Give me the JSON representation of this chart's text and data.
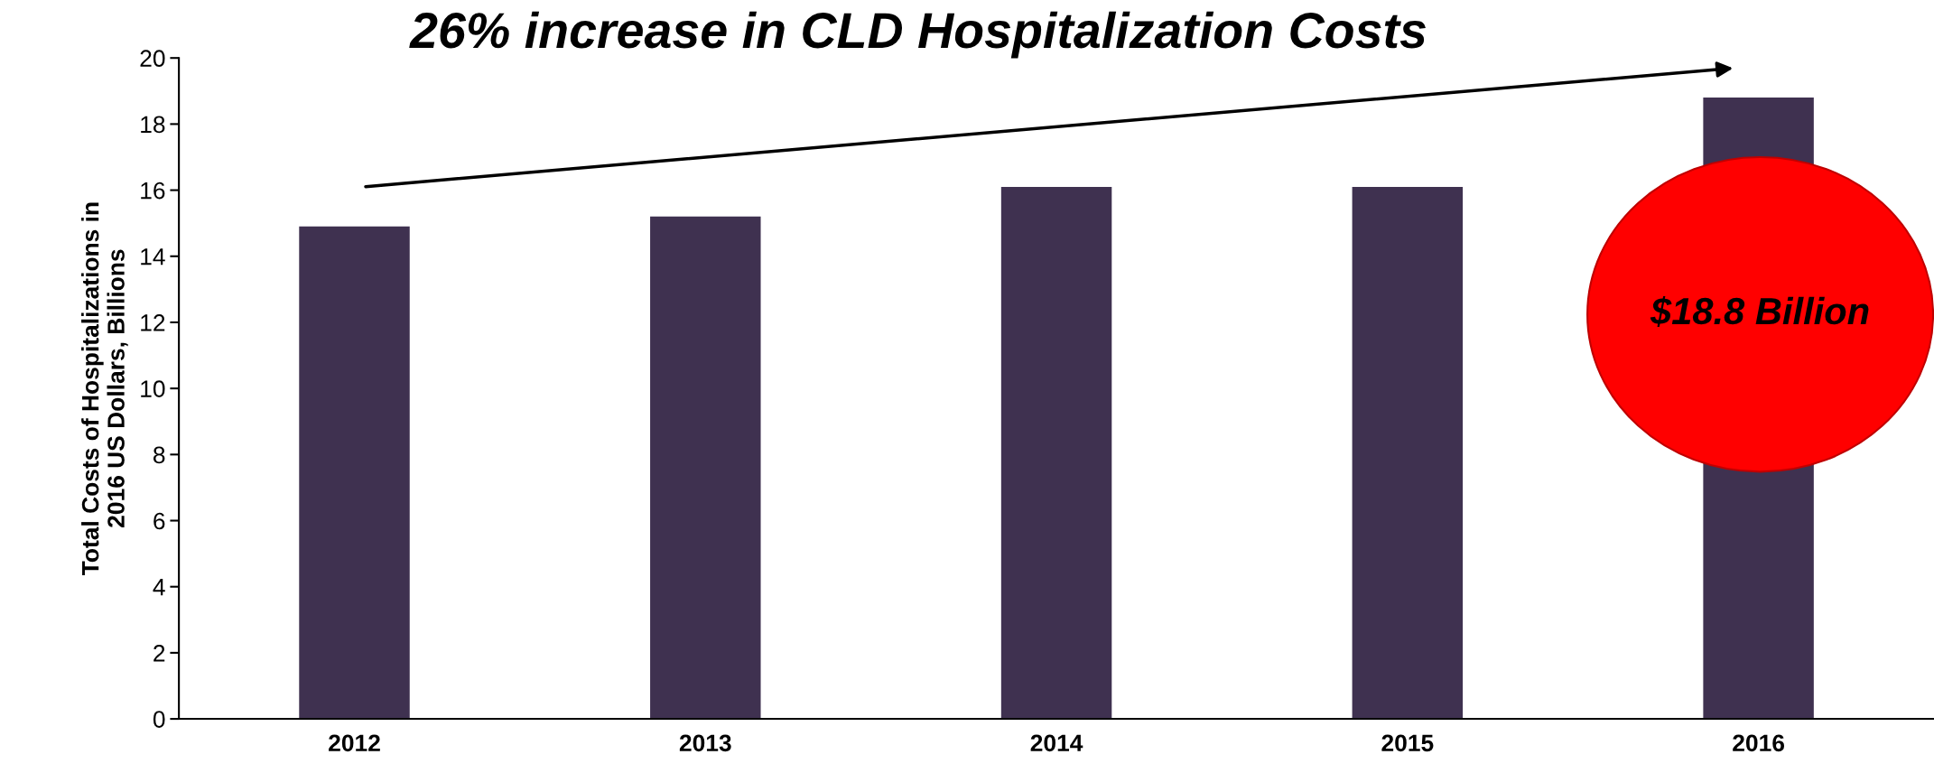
{
  "chart_data": {
    "type": "bar",
    "title": "26% increase in CLD Hospitalization Costs",
    "ylabel": "Total Costs of Hospitalizations in\n2016 US Dollars, Billions",
    "categories": [
      "2012",
      "2013",
      "2014",
      "2015",
      "2016"
    ],
    "values": [
      14.9,
      15.2,
      16.1,
      16.1,
      18.8
    ],
    "color": "#3f3150",
    "ylim": [
      0,
      20
    ],
    "yticks": [
      0,
      2,
      4,
      6,
      8,
      10,
      12,
      14,
      16,
      18,
      20
    ],
    "grid": false,
    "annotations": [
      "$18.8 Billion"
    ]
  }
}
